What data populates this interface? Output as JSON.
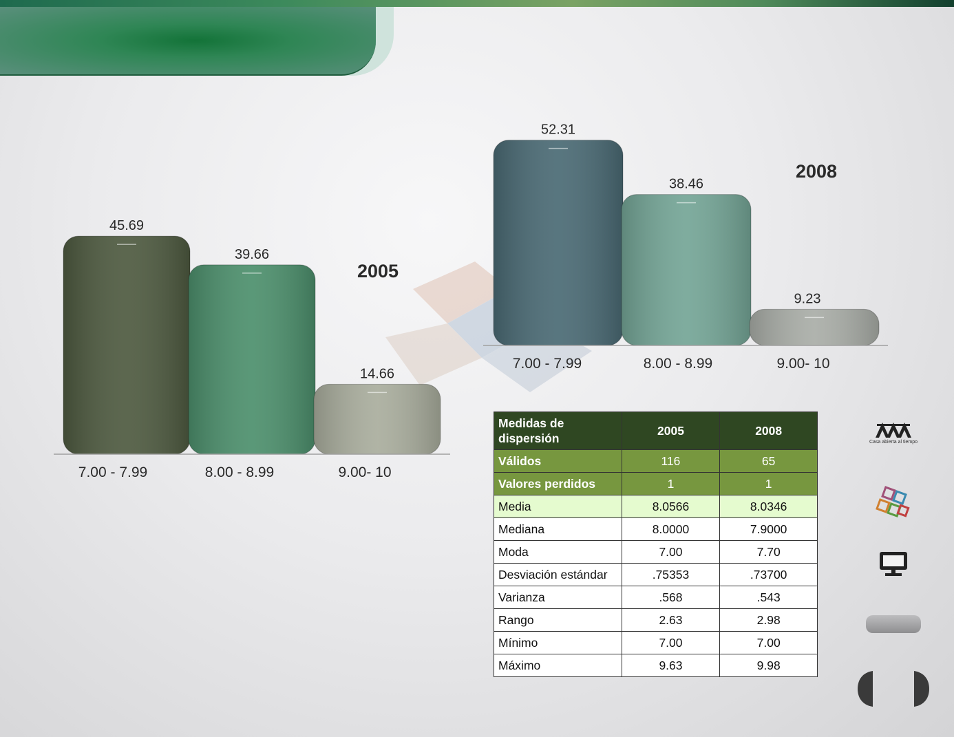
{
  "chart_data": [
    {
      "type": "bar",
      "title": "2005",
      "categories": [
        "7.00 - 7.99",
        "8.00 - 8.99",
        "9.00- 10"
      ],
      "values": [
        45.69,
        39.66,
        14.66
      ],
      "value_labels": [
        "45.69",
        "39.66",
        "14.66"
      ],
      "colors": [
        "#4e5a40",
        "#4c8f6c",
        "#a9ad9d"
      ],
      "ylim": [
        0,
        47
      ]
    },
    {
      "type": "bar",
      "title": "2008",
      "categories": [
        "7.00 - 7.99",
        "8.00 - 8.99",
        "9.00- 10"
      ],
      "values": [
        52.31,
        38.46,
        9.23
      ],
      "value_labels": [
        "52.31",
        "38.46",
        "9.23"
      ],
      "colors": [
        "#4a6a74",
        "#74a596",
        "#a9ada7"
      ],
      "ylim": [
        0,
        54
      ]
    }
  ],
  "table": {
    "header": {
      "label": "Medidas de dispersión",
      "col1": "2005",
      "col2": "2008"
    },
    "rows": [
      {
        "label": "Válidos",
        "v2005": "116",
        "v2008": "65",
        "style": "green"
      },
      {
        "label": "Valores perdidos",
        "v2005": "1",
        "v2008": "1",
        "style": "green"
      },
      {
        "label": "Media",
        "v2005": "8.0566",
        "v2008": "8.0346",
        "style": "light"
      },
      {
        "label": "Mediana",
        "v2005": "8.0000",
        "v2008": "7.9000",
        "style": "plain"
      },
      {
        "label": "Moda",
        "v2005": "7.00",
        "v2008": "7.70",
        "style": "plain"
      },
      {
        "label": "Desviación estándar",
        "v2005": ".75353",
        "v2008": ".73700",
        "style": "plain"
      },
      {
        "label": "Varianza",
        "v2005": ".568",
        "v2008": ".543",
        "style": "plain"
      },
      {
        "label": "Rango",
        "v2005": "2.63",
        "v2008": "2.98",
        "style": "plain"
      },
      {
        "label": "Mínimo",
        "v2005": "7.00",
        "v2008": "7.00",
        "style": "plain"
      },
      {
        "label": "Máximo",
        "v2005": "9.63",
        "v2008": "9.98",
        "style": "plain"
      }
    ]
  },
  "sidebar": {
    "logo_text": "Casa abierta al tiempo",
    "icons": [
      "uam-logo-icon",
      "colorful-cubes-icon",
      "monitor-icon",
      "nav-pill-button",
      "prev-arrow-icon",
      "next-arrow-icon"
    ]
  }
}
